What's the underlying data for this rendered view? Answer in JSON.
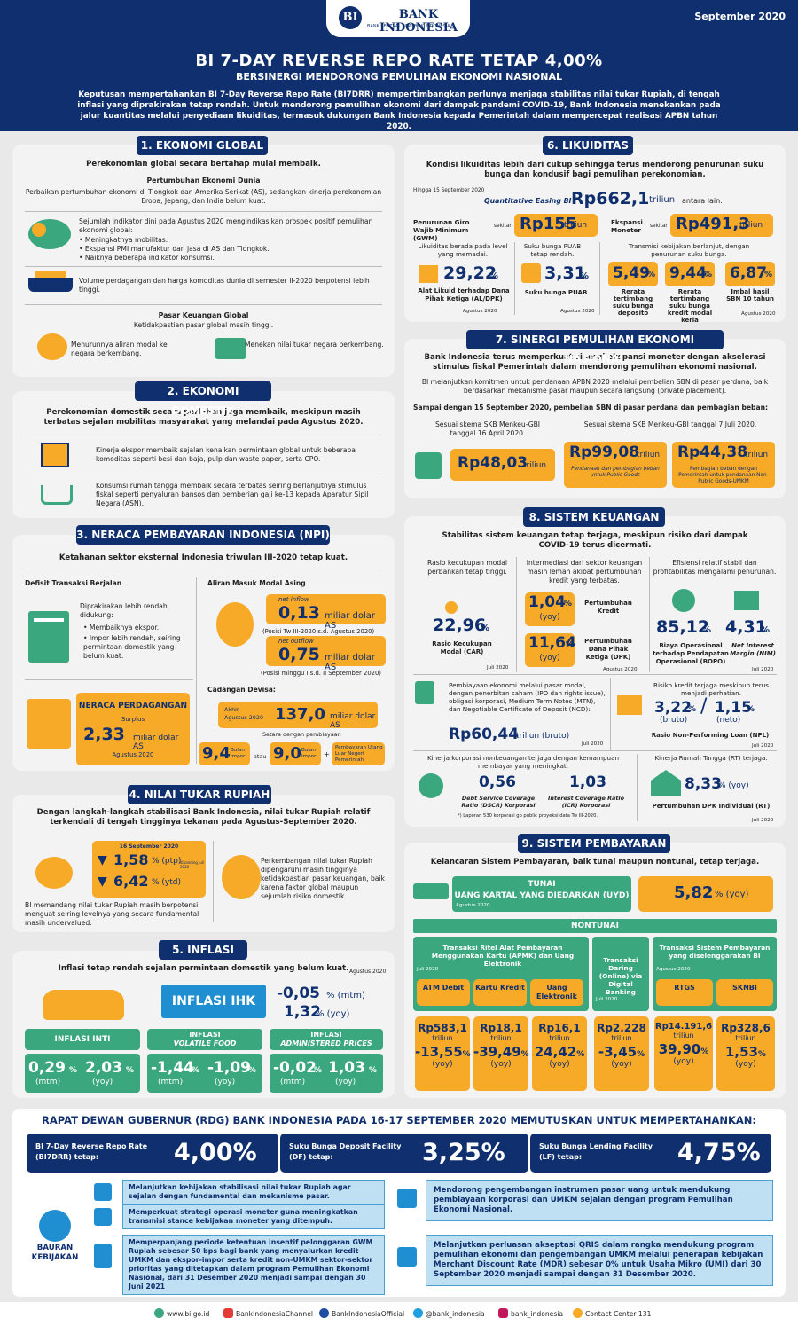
{
  "header": {
    "logo_name": "BANK INDONESIA",
    "logo_sub": "BANK SENTRAL REPUBLIK INDONESIA",
    "date": "September 2020",
    "title": "BI 7-DAY REVERSE REPO RATE TETAP 4,00%",
    "subtitle": "BERSINERGI MENDORONG PEMULIHAN EKONOMI NASIONAL",
    "intro": "Keputusan mempertahankan BI 7-Day Reverse Repo Rate (BI7DRR) mempertimbangkan perlunya menjaga stabilitas nilai tukar Rupiah, di tengah inflasi yang diprakirakan tetap rendah. Untuk mendorong pemulihan ekonomi dari dampak pandemi COVID-19, Bank Indonesia menekankan pada jalur kuantitas melalui penyediaan likuiditas, termasuk dukungan Bank Indonesia kepada Pemerintah dalam mempercepat realisasi APBN tahun 2020."
  },
  "s1": {
    "title": "1. EKONOMI GLOBAL",
    "lead": "Perekonomian global secara bertahap mulai membaik.",
    "sub1": "Pertumbuhan Ekonomi Dunia",
    "p1": "Perbaikan pertumbuhan ekonomi di Tiongkok dan Amerika Serikat (AS), sedangkan kinerja perekonomian Eropa, Jepang, dan India belum kuat.",
    "p2": "Sejumlah indikator dini pada Agustus 2020 mengindikasikan prospek positif pemulihan ekonomi global:",
    "b1": "• Meningkatnya mobilitas.",
    "b2": "• Ekspansi PMI manufaktur dan jasa di AS dan Tiongkok.",
    "b3": "• Naiknya beberapa indikator konsumsi.",
    "p3": "Volume perdagangan dan harga komoditas dunia di semester II-2020 berpotensi lebih tinggi.",
    "sub2": "Pasar Keuangan Global",
    "sub2b": "Ketidakpastian pasar global masih tinggi.",
    "p4": "Menurunnya aliran modal ke negara berkembang.",
    "p5": "Menekan nilai tukar negara berkembang."
  },
  "s2": {
    "title": "2. EKONOMI DOMESTIK",
    "lead": "Perekonomian domestik secara perlahan juga membaik, meskipun masih terbatas sejalan mobilitas masyarakat yang melandai pada Agustus 2020.",
    "p1": "Kinerja ekspor membaik sejalan kenaikan permintaan global untuk beberapa komoditas seperti besi dan baja, pulp dan waste paper, serta CPO.",
    "p2": "Konsumsi rumah tangga membaik secara terbatas seiring berlanjutnya stimulus fiskal seperti penyaluran bansos dan pemberian gaji ke-13 kepada Aparatur Sipil Negara (ASN)."
  },
  "s3": {
    "title": "3. NERACA PEMBAYARAN INDONESIA (NPI)",
    "lead": "Ketahanan sektor eksternal Indonesia triwulan III-2020 tetap kuat.",
    "h1": "Defisit Transaksi Berjalan",
    "p1": "Diprakirakan lebih rendah, didukung:",
    "b1": "• Membaiknya ekspor.",
    "b2": "• Impor lebih rendah, seiring permintaan domestik yang belum kuat.",
    "h2": "Aliran Masuk Modal Asing",
    "inflow_lbl": "net inflow",
    "inflow_val": "0,13",
    "inflow_unit": "miliar dolar AS",
    "inflow_note": "(Posisi Tw III-2020 s.d. Agustus 2020)",
    "outflow_lbl": "net outflow",
    "outflow_val": "0,75",
    "outflow_unit": "miliar dolar AS",
    "outflow_note": "(Posisi minggu I s.d. II September 2020)",
    "np_title": "NERACA PERDAGANGAN",
    "np_sub": "Surplus",
    "np_val": "2,33",
    "np_unit": "miliar dolar AS",
    "np_date": "Agustus 2020",
    "h3": "Cadangan Devisa:",
    "cd_pre1": "Akhir",
    "cd_pre2": "Agustus 2020",
    "cd_val": "137,0",
    "cd_unit": "miliar dolar AS",
    "cd_note": "Setara dengan pembiayaan",
    "v1": "9,4",
    "v1u": "Bulan Impor",
    "atau": "atau",
    "v2": "9,0",
    "v2u": "Bulan Impor",
    "plus": "+",
    "v2n": "Pembayaran Utang Luar Negeri Pemerintah"
  },
  "s4": {
    "title": "4. NILAI TUKAR RUPIAH",
    "lead": "Dengan langkah-langkah stabilisasi Bank Indonesia, nilai tukar Rupiah relatif terkendali di tengah tingginya tekanan pada Agustus-September 2020.",
    "date": "16 September 2020",
    "v1": "1,58",
    "v1u": "% (ptp)",
    "v1n": "dibanding Juli 2020",
    "v2": "6,42",
    "v2u": "% (ytd)",
    "p1": "BI memandang nilai tukar Rupiah masih berpotensi menguat seiring levelnya yang secara fundamental masih undervalued.",
    "p2": "Perkembangan nilai tukar Rupiah dipengaruhi masih tingginya ketidakpastian pasar keuangan, baik karena faktor global maupun sejumlah risiko domestik."
  },
  "s5": {
    "title": "5. INFLASI",
    "lead": "Inflasi tetap rendah sejalan permintaan domestik yang belum kuat.",
    "date": "Agustus 2020",
    "ihk": "INFLASI IHK",
    "ihk1": "-0,05",
    "ihk1u": "% (mtm)",
    "ihk2": "1,32",
    "ihk2u": "% (yoy)",
    "c1": "INFLASI INTI",
    "c2a": "INFLASI",
    "c2b": "VOLATILE FOOD",
    "c3a": "INFLASI",
    "c3b": "ADMINISTERED PRICES",
    "vals": [
      {
        "v": "0,29",
        "u": "(mtm)"
      },
      {
        "v": "2,03",
        "u": "(yoy)"
      },
      {
        "v": "-1,44",
        "u": "(mtm)"
      },
      {
        "v": "-1,09",
        "u": "(yoy)"
      },
      {
        "v": "-0,02",
        "u": "(mtm)"
      },
      {
        "v": "1,03",
        "u": "(yoy)"
      }
    ],
    "pct": "%"
  },
  "s6": {
    "title": "6. LIKUIDITAS",
    "lead": "Kondisi likuiditas lebih dari cukup sehingga terus mendorong penurunan suku bunga dan kondusif bagi pemulihan perekonomian.",
    "asof": "Hingga 15 September 2020",
    "qe": "Quantitative Easing BI",
    "qe_val": "Rp662,1",
    "qe_unit": "triliun",
    "qe_tail": "antara lain:",
    "gwm": "Penurunan Giro Wajib Minimum (GWM)",
    "sekitar": "sekitar",
    "gwm_val": "Rp155",
    "gwm_unit": "triliun",
    "em": "Ekspansi Moneter",
    "em_val": "Rp491,3",
    "em_unit": "triliun",
    "l1": "Likuiditas berada pada level yang memadai.",
    "l2": "Suku bunga PUAB tetap rendah.",
    "l3": "Transmisi kebijakan berlanjut, dengan penurunan suku bunga.",
    "r1": "29,22",
    "r1l": "Alat Likuid terhadap Dana Pihak Ketiga (AL/DPK)",
    "r1d": "Agustus 2020",
    "r2": "3,31",
    "r2l": "Suku bunga PUAB",
    "r2d": "Agustus 2020",
    "r3": "5,49",
    "r3l": "Rerata tertimbang suku bunga deposito",
    "r4": "9,44",
    "r4l": "Rerata tertimbang suku bunga kredit modal kerja",
    "r5": "6,87",
    "r5l": "Imbal hasil SBN 10 tahun",
    "r5d": "Agustus 2020",
    "pct": "%"
  },
  "s7": {
    "title": "7. SINERGI PEMULIHAN EKONOMI NASIONAL",
    "lead": "Bank Indonesia terus memperkuat sinergi ekspansi moneter dengan akselerasi stimulus fiskal Pemerintah dalam mendorong pemulihan ekonomi nasional.",
    "p1": "BI melanjutkan komitmen untuk pendanaan APBN 2020 melalui pembelian SBN di pasar perdana, baik berdasarkan mekanisme pasar maupun secara langsung (private placement).",
    "p2": "Sampai dengan 15 September 2020, pembelian SBN di pasar perdana dan pembagian beban:",
    "k1": "Sesuai skema SKB Menkeu-GBI tanggal 16 April 2020.",
    "k2": "Sesuai skema SKB Menkeu-GBI tanggal 7 Juli 2020.",
    "v1": "Rp48,03",
    "v2": "Rp99,08",
    "v3": "Rp44,38",
    "unit": "triliun",
    "n2": "Pendanaan dan pembagian beban untuk Public Goods",
    "n3": "Pembagian beban dengan Pemerintah untuk pendanaan Non-Public Goods-UMKM"
  },
  "s8": {
    "title": "8. SISTEM KEUANGAN",
    "lead": "Stabilitas sistem keuangan tetap terjaga, meskipun risiko dari dampak COVID-19 terus dicermati.",
    "c1": "Rasio kecukupan modal perbankan tetap tinggi.",
    "c2": "Intermediasi dari sektor keuangan masih lemah akibat pertumbuhan kredit yang terbatas.",
    "c3": "Efisiensi relatif stabil dan profitabilitas mengalami penurunan.",
    "car": "22,96",
    "car_l": "Rasio Kecukupan Modal (CAR)",
    "car_d": "Juli 2020",
    "kr": "1,04",
    "krl": "Pertumbuhan Kredit",
    "dpk": "11,64",
    "dpkl": "Pertumbuhan Dana Pihak Ketiga (DPK)",
    "yoy": "(yoy)",
    "mid_d": "Agustus 2020",
    "bopo": "85,12",
    "bopol": "Biaya Operasional terhadap Pendapatan Operasional (BOPO)",
    "nim": "4,31",
    "niml": "Net Interest Margin (NIM)",
    "r_d": "Juli 2020",
    "pasar": "Pembiayaan ekonomi melalui pasar modal, dengan penerbitan saham (IPO dan rights issue), obligasi korporasi, Medium Term Notes (MTN), dan Negotiable Certificate of Deposit (NCD):",
    "pasar_v": "Rp60,44",
    "pasar_u": "triliun (bruto)",
    "pasar_d": "Juli 2020",
    "npl_h": "Risiko kredit terjaga meskipun terus menjadi perhatian.",
    "npl1": "3,22",
    "npl1u": "(bruto)",
    "npl2": "1,15",
    "npl2u": "(neto)",
    "npll": "Rasio Non-Performing Loan (NPL)",
    "npl_d": "Juli 2020",
    "kor": "Kinerja korporasi nonkeuangan terjaga dengan kemampuan membayar yang meningkat.",
    "dscr": "0,56",
    "dscrl": "Debt Service Coverage Ratio (DSCR) Korporasi",
    "icr": "1,03",
    "icrl": "Interest Coverage Ratio (ICR) Korporasi",
    "kor_n": "*) Laporan 530 korporasi go public proyeksi data Tw III-2020.",
    "rt": "Kinerja Rumah Tangga (RT) terjaga.",
    "rt_v": "8,33",
    "rt_u": "% (yoy)",
    "rt_l": "Pertumbuhan DPK Individual (RT)",
    "rt_d": "Juli 2020",
    "pct": "%"
  },
  "s9": {
    "title": "9. SISTEM PEMBAYARAN",
    "lead": "Kelancaran Sistem Pembayaran, baik tunai maupun nontunai, tetap terjaga.",
    "tunai": "TUNAI",
    "uyd": "UANG KARTAL YANG DIEDARKAN (UYD)",
    "uyd_d": "Agustus 2020",
    "uyd_v": "5,82",
    "uyd_u": "% (yoy)",
    "nontunai": "NONTUNAI",
    "g1": "Transaksi Ritel Alat Pembayaran Menggunakan Kartu (APMK) dan Uang Elektronik",
    "g1d": "Juli 2020",
    "g2": "Transaksi Daring (Online) via Digital Banking",
    "g2d": "Juli 2020",
    "g3": "Transaksi Sistem Pembayaran yang diselenggarakan BI",
    "g3d": "Agustus 2020",
    "items": [
      {
        "n": "ATM Debit",
        "a": "Rp583,1",
        "g": "-13,55"
      },
      {
        "n": "Kartu Kredit",
        "a": "Rp18,1",
        "g": "-39,49"
      },
      {
        "n": "Uang Elektronik",
        "a": "Rp16,1",
        "g": "24,42"
      },
      {
        "n": "",
        "a": "Rp2.228",
        "g": "-3,45"
      },
      {
        "n": "RTGS",
        "a": "Rp14.191,6",
        "g": "39,90"
      },
      {
        "n": "SKNBI",
        "a": "Rp328,6",
        "g": "1,53"
      }
    ],
    "triliun": "triliun",
    "yoy": "(yoy)",
    "pct": "%"
  },
  "rdg": {
    "title": "RAPAT DEWAN GUBERNUR (RDG) BANK INDONESIA PADA 16-17 SEPTEMBER 2020 MEMUTUSKAN UNTUK MEMPERTAHANKAN:",
    "r1a": "BI 7-Day Reverse Repo Rate",
    "r1b": "(BI7DRR) tetap:",
    "r1v": "4,00%",
    "r2a": "Suku Bunga Deposit Facility",
    "r2b": "(DF) tetap:",
    "r2v": "3,25%",
    "r3a": "Suku Bunga Lending Facility",
    "r3b": "(LF) tetap:",
    "r3v": "4,75%",
    "bauran": "BAURAN KEBIJAKAN",
    "k1": "Melanjutkan kebijakan stabilisasi nilai tukar Rupiah agar sejalan dengan fundamental dan mekanisme pasar.",
    "k2": "Memperkuat strategi operasi moneter guna meningkatkan transmisi stance kebijakan moneter yang ditempuh.",
    "k3": "Memperpanjang periode ketentuan insentif pelonggaran GWM Rupiah sebesar 50 bps bagi bank yang menyalurkan kredit UMKM dan ekspor-impor serta kredit non-UMKM sektor-sektor prioritas yang ditetapkan dalam program Pemulihan Ekonomi Nasional, dari 31 Desember 2020 menjadi sampai dengan 30 Juni 2021",
    "k4": "Mendorong pengembangan instrumen pasar uang untuk mendukung pembiayaan korporasi dan UMKM sejalan dengan program Pemulihan Ekonomi Nasional.",
    "k5": "Melanjutkan perluasan akseptasi QRIS dalam rangka mendukung program pemulihan ekonomi dan pengembangan UMKM melalui penerapan kebijakan Merchant Discount Rate (MDR) sebesar 0% untuk Usaha Mikro (UMI) dari 30 September 2020 menjadi sampai dengan 31 Desember 2020."
  },
  "footer": {
    "web": "www.bi.go.id",
    "yt": "BankIndonesiaChannel",
    "fb": "BankIndonesiaOfficial",
    "tw": "@bank_indonesia",
    "ig": "bank_indonesia",
    "cc": "Contact Center 131"
  },
  "colors": {
    "navy": "#0f2f6e",
    "orange": "#f7a928",
    "green": "#3aa77f",
    "panel": "#f3f3f3"
  }
}
